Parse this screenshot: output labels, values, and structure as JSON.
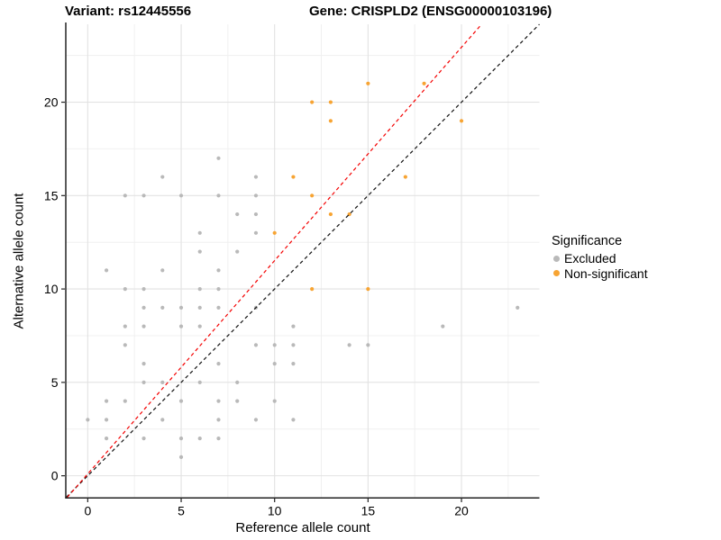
{
  "titles": {
    "left": "Variant: rs12445556",
    "right": "Gene: CRISPLD2 (ENSG00000103196)"
  },
  "legend": {
    "title": "Significance",
    "items": [
      {
        "label": "Excluded",
        "color": "#b9b9b9"
      },
      {
        "label": "Non-significant",
        "color": "#F7A433"
      }
    ]
  },
  "chart_data": {
    "type": "scatter",
    "xlabel": "Reference allele count",
    "ylabel": "Alternative allele count",
    "xlim": [
      -1.15,
      24.17
    ],
    "ylim": [
      -1.15,
      24.17
    ],
    "x_major_ticks": [
      0,
      5,
      10,
      15,
      20
    ],
    "y_major_ticks": [
      0,
      5,
      10,
      15,
      20
    ],
    "x_minor_ticks": [
      2.5,
      7.5,
      12.5,
      17.5,
      22.5
    ],
    "y_minor_ticks": [
      2.5,
      7.5,
      12.5,
      17.5,
      22.5
    ],
    "grid": true,
    "legend_position": "right",
    "series": [
      {
        "name": "Excluded",
        "color": "#b9b9b9",
        "points": [
          [
            7,
            17
          ],
          [
            4,
            16
          ],
          [
            9,
            16
          ],
          [
            2,
            15
          ],
          [
            3,
            15
          ],
          [
            5,
            15
          ],
          [
            7,
            15
          ],
          [
            9,
            15
          ],
          [
            8,
            14
          ],
          [
            9,
            14
          ],
          [
            6,
            13
          ],
          [
            9,
            13
          ],
          [
            6,
            12
          ],
          [
            8,
            12
          ],
          [
            1,
            11
          ],
          [
            4,
            11
          ],
          [
            7,
            11
          ],
          [
            2,
            10
          ],
          [
            3,
            10
          ],
          [
            6,
            10
          ],
          [
            7,
            10
          ],
          [
            3,
            9
          ],
          [
            4,
            9
          ],
          [
            5,
            9
          ],
          [
            6,
            9
          ],
          [
            7,
            9
          ],
          [
            9,
            9
          ],
          [
            23,
            9
          ],
          [
            2,
            8
          ],
          [
            3,
            8
          ],
          [
            5,
            8
          ],
          [
            6,
            8
          ],
          [
            11,
            8
          ],
          [
            19,
            8
          ],
          [
            2,
            7
          ],
          [
            9,
            7
          ],
          [
            10,
            7
          ],
          [
            11,
            7
          ],
          [
            14,
            7
          ],
          [
            15,
            7
          ],
          [
            3,
            6
          ],
          [
            7,
            6
          ],
          [
            10,
            6
          ],
          [
            11,
            6
          ],
          [
            3,
            5
          ],
          [
            4,
            5
          ],
          [
            6,
            5
          ],
          [
            8,
            5
          ],
          [
            1,
            4
          ],
          [
            2,
            4
          ],
          [
            5,
            4
          ],
          [
            7,
            4
          ],
          [
            8,
            4
          ],
          [
            10,
            4
          ],
          [
            0,
            3
          ],
          [
            1,
            3
          ],
          [
            4,
            3
          ],
          [
            7,
            3
          ],
          [
            9,
            3
          ],
          [
            11,
            3
          ],
          [
            1,
            2
          ],
          [
            3,
            2
          ],
          [
            5,
            2
          ],
          [
            6,
            2
          ],
          [
            7,
            2
          ],
          [
            5,
            1
          ]
        ]
      },
      {
        "name": "Non-significant",
        "color": "#F7A433",
        "points": [
          [
            15,
            21
          ],
          [
            18,
            21
          ],
          [
            12,
            20
          ],
          [
            13,
            20
          ],
          [
            13,
            19
          ],
          [
            20,
            19
          ],
          [
            11,
            16
          ],
          [
            17,
            16
          ],
          [
            12,
            15
          ],
          [
            13,
            14
          ],
          [
            14,
            14
          ],
          [
            10,
            13
          ],
          [
            12,
            10
          ],
          [
            15,
            10
          ]
        ]
      }
    ],
    "reference_lines": [
      {
        "name": "identity-line",
        "slope": 1,
        "intercept": 0,
        "color": "#111111",
        "style": "dashed"
      },
      {
        "name": "expected-ratio-line",
        "slope": 1.142,
        "intercept": 0.1,
        "color": "#F40000",
        "style": "dashed"
      }
    ]
  }
}
